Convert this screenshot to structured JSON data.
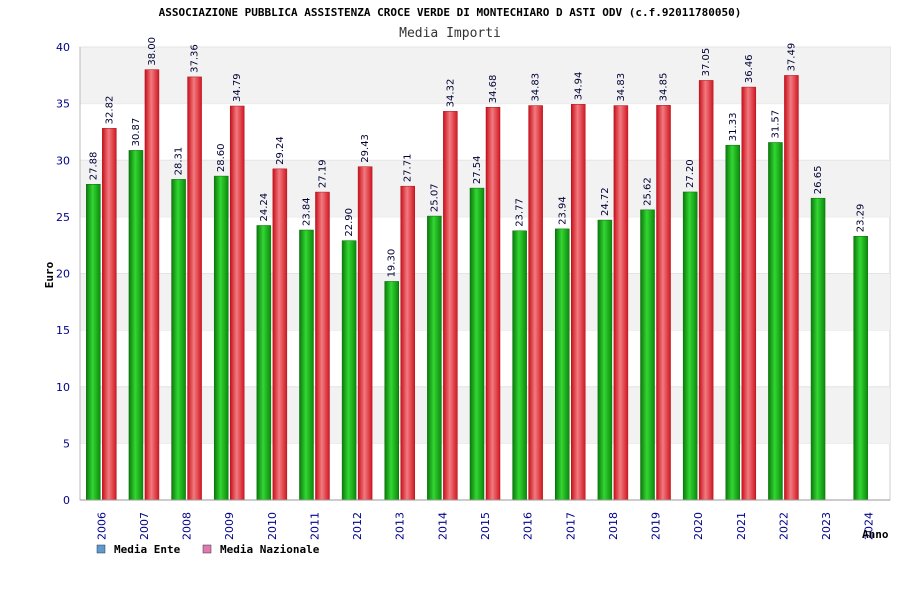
{
  "chart_data": {
    "type": "bar",
    "title": "ASSOCIAZIONE PUBBLICA ASSISTENZA CROCE VERDE DI MONTECHIARO D ASTI ODV (c.f.92011780050)",
    "subtitle": "Media Importi",
    "ylabel": "Euro",
    "xlabel": "Anno",
    "ylim": [
      0,
      40
    ],
    "yticks": [
      0,
      5,
      10,
      15,
      20,
      25,
      30,
      35,
      40
    ],
    "grid": "horizontal-bands",
    "legend_position": "bottom-left",
    "categories": [
      "2006",
      "2007",
      "2008",
      "2009",
      "2010",
      "2011",
      "2012",
      "2013",
      "2014",
      "2015",
      "2016",
      "2017",
      "2018",
      "2019",
      "2020",
      "2021",
      "2022",
      "2023",
      "2024"
    ],
    "series": [
      {
        "name": "Media Ente",
        "legend_color": "#5b9bd5",
        "color": "#1aa51a",
        "values": [
          27.88,
          30.87,
          28.31,
          28.6,
          24.24,
          23.84,
          22.9,
          19.3,
          25.07,
          27.54,
          23.77,
          23.94,
          24.72,
          25.62,
          27.2,
          31.33,
          31.57,
          26.65,
          23.29
        ],
        "labels": [
          "27.88",
          "30.87",
          "28.31",
          "28.60",
          "24.24",
          "23.84",
          "22.90",
          "19.30",
          "25.07",
          "27.54",
          "23.77",
          "23.94",
          "24.72",
          "25.62",
          "27.20",
          "31.33",
          "31.57",
          "26.65",
          "23.29"
        ]
      },
      {
        "name": "Media Nazionale",
        "legend_color": "#e07ab0",
        "color": "#e0202a",
        "values": [
          32.82,
          38.0,
          37.36,
          34.79,
          29.24,
          27.19,
          29.43,
          27.71,
          34.32,
          34.68,
          34.83,
          34.94,
          34.83,
          34.85,
          37.05,
          36.46,
          37.49,
          null,
          null
        ],
        "labels": [
          "32.82",
          "38.00",
          "37.36",
          "34.79",
          "29.24",
          "27.19",
          "29.43",
          "27.71",
          "34.32",
          "34.68",
          "34.83",
          "34.94",
          "34.83",
          "34.85",
          "37.05",
          "36.46",
          "37.49",
          "",
          ""
        ]
      }
    ]
  }
}
